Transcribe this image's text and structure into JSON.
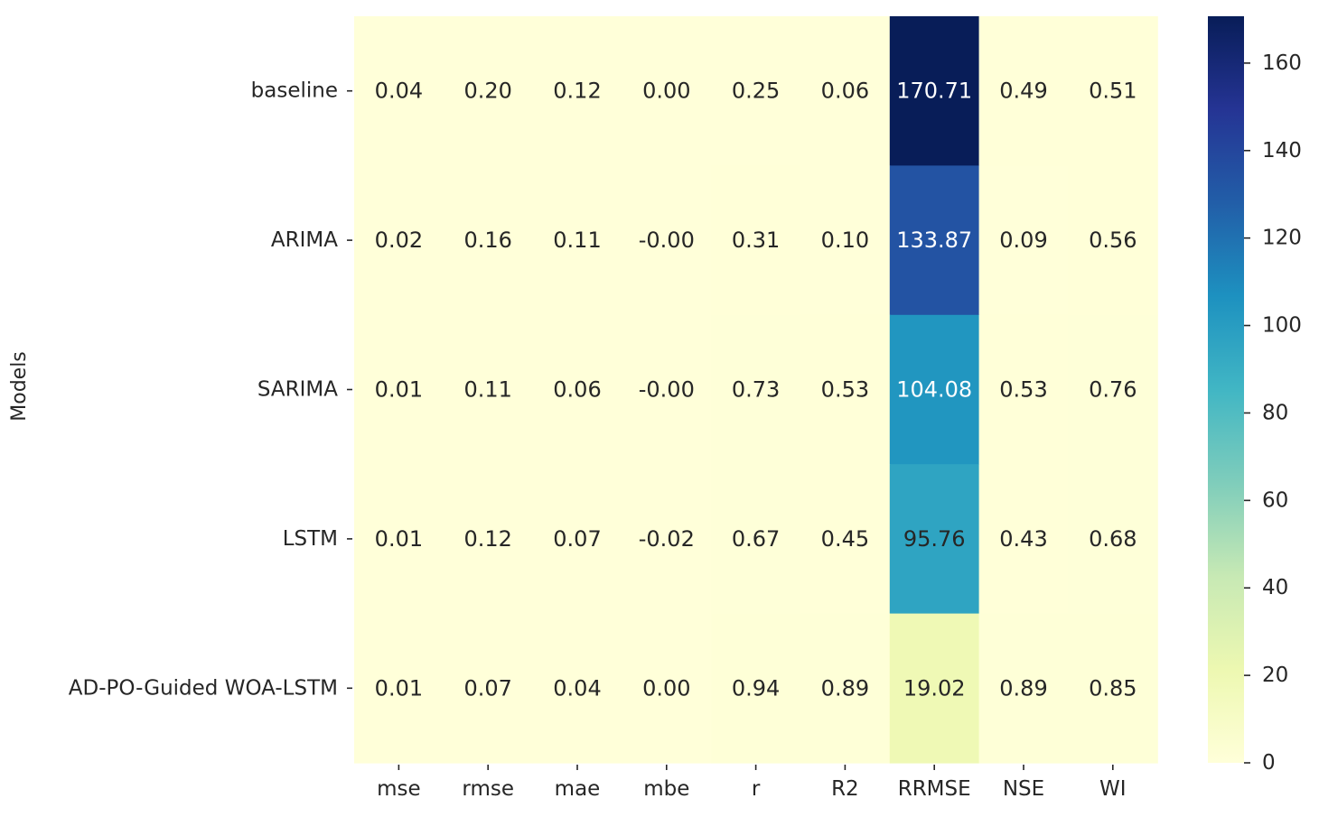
{
  "chart_data": {
    "type": "heatmap",
    "title": "",
    "xlabel": "",
    "ylabel": "Models",
    "columns": [
      "mse",
      "rmse",
      "mae",
      "mbe",
      "r",
      "R2",
      "RRMSE",
      "NSE",
      "WI"
    ],
    "rows": [
      "baseline",
      "ARIMA",
      "SARIMA",
      "LSTM",
      "AD-PO-Guided WOA-LSTM"
    ],
    "values": [
      [
        0.04,
        0.2,
        0.12,
        0.0,
        0.25,
        0.06,
        170.71,
        0.49,
        0.51
      ],
      [
        0.02,
        0.16,
        0.11,
        -0.0,
        0.31,
        0.1,
        133.87,
        0.09,
        0.56
      ],
      [
        0.01,
        0.11,
        0.06,
        -0.0,
        0.73,
        0.53,
        104.08,
        0.53,
        0.76
      ],
      [
        0.01,
        0.12,
        0.07,
        -0.02,
        0.67,
        0.45,
        95.76,
        0.43,
        0.68
      ],
      [
        0.01,
        0.07,
        0.04,
        0.0,
        0.94,
        0.89,
        19.02,
        0.89,
        0.85
      ]
    ],
    "labels": [
      [
        "0.04",
        "0.20",
        "0.12",
        "0.00",
        "0.25",
        "0.06",
        "170.71",
        "0.49",
        "0.51"
      ],
      [
        "0.02",
        "0.16",
        "0.11",
        "-0.00",
        "0.31",
        "0.10",
        "133.87",
        "0.09",
        "0.56"
      ],
      [
        "0.01",
        "0.11",
        "0.06",
        "-0.00",
        "0.73",
        "0.53",
        "104.08",
        "0.53",
        "0.76"
      ],
      [
        "0.01",
        "0.12",
        "0.07",
        "-0.02",
        "0.67",
        "0.45",
        "95.76",
        "0.43",
        "0.68"
      ],
      [
        "0.01",
        "0.07",
        "0.04",
        "0.00",
        "0.94",
        "0.89",
        "19.02",
        "0.89",
        "0.85"
      ]
    ],
    "colormap": "YlGnBu",
    "colorbar": {
      "range": [
        0,
        170.71
      ],
      "ticks": [
        0,
        20,
        40,
        60,
        80,
        100,
        120,
        140,
        160
      ],
      "tick_labels": [
        "0",
        "20",
        "40",
        "60",
        "80",
        "100",
        "120",
        "140",
        "160"
      ]
    },
    "annotation_colors": {
      "dark_text": "#262626",
      "light_text": "#ffffff"
    },
    "colormap_stops": [
      "#ffffd9",
      "#edf8b1",
      "#c7e9b4",
      "#7fcdbb",
      "#41b6c4",
      "#1d91c0",
      "#225ea8",
      "#253494",
      "#081d58"
    ]
  }
}
